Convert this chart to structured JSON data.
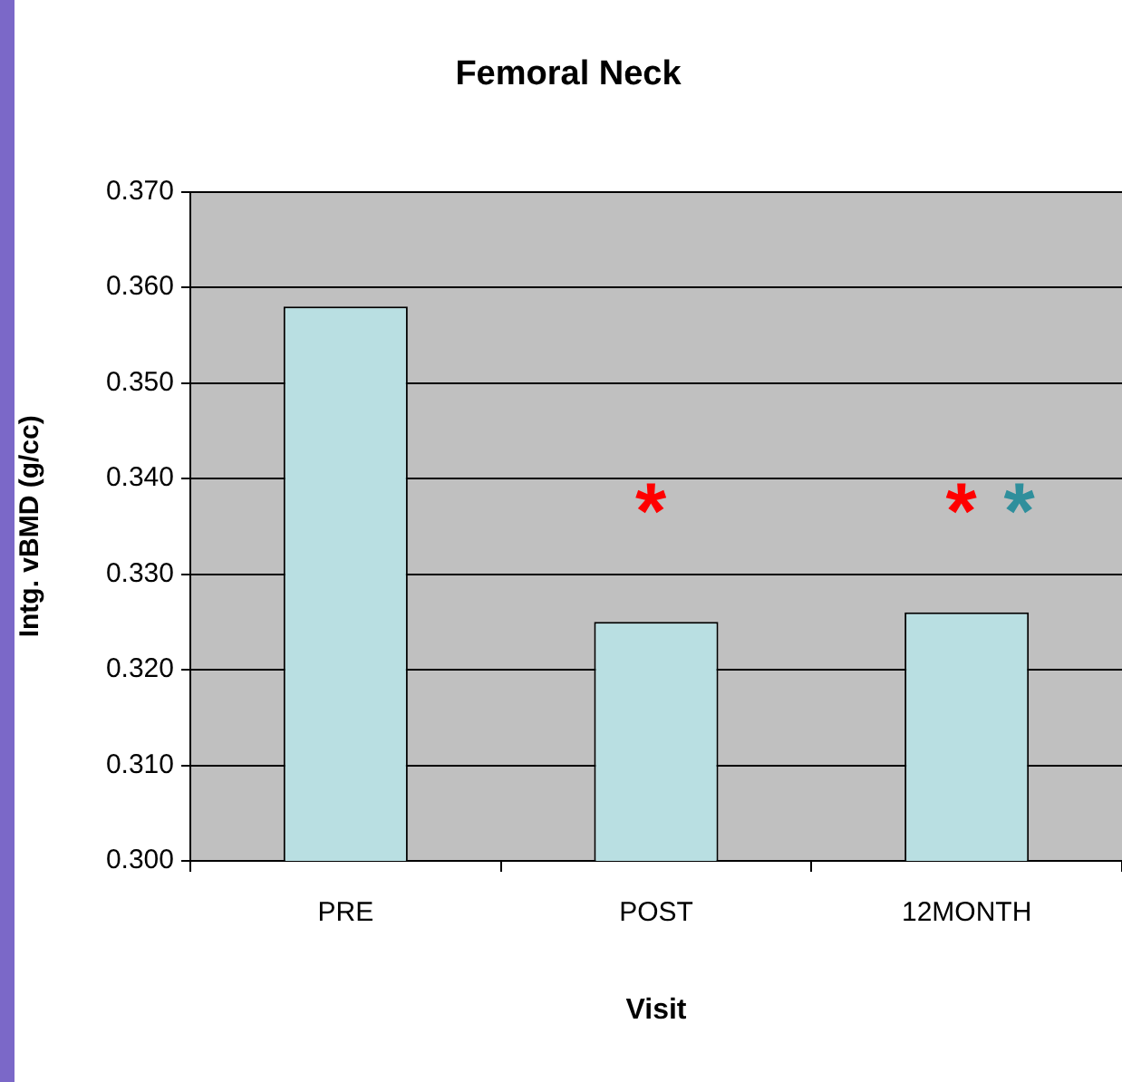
{
  "chart_data": {
    "type": "bar",
    "title": "Femoral Neck",
    "xlabel": "Visit",
    "ylabel": "Intg. vBMD (g/cc)",
    "categories": [
      "PRE",
      "POST",
      "12MONTH"
    ],
    "values": [
      0.358,
      0.325,
      0.326
    ],
    "color": "#b9dfe2",
    "ylim": [
      0.3,
      0.37
    ],
    "yticks": [
      {
        "value": 0.3,
        "label": "0.300"
      },
      {
        "value": 0.31,
        "label": "0.310"
      },
      {
        "value": 0.32,
        "label": "0.320"
      },
      {
        "value": 0.33,
        "label": "0.330"
      },
      {
        "value": 0.34,
        "label": "0.340"
      },
      {
        "value": 0.35,
        "label": "0.350"
      },
      {
        "value": 0.36,
        "label": "0.360"
      },
      {
        "value": 0.37,
        "label": "0.370"
      }
    ],
    "grid": "y",
    "legend": false,
    "annotations": [
      "*",
      "*",
      "*"
    ]
  }
}
